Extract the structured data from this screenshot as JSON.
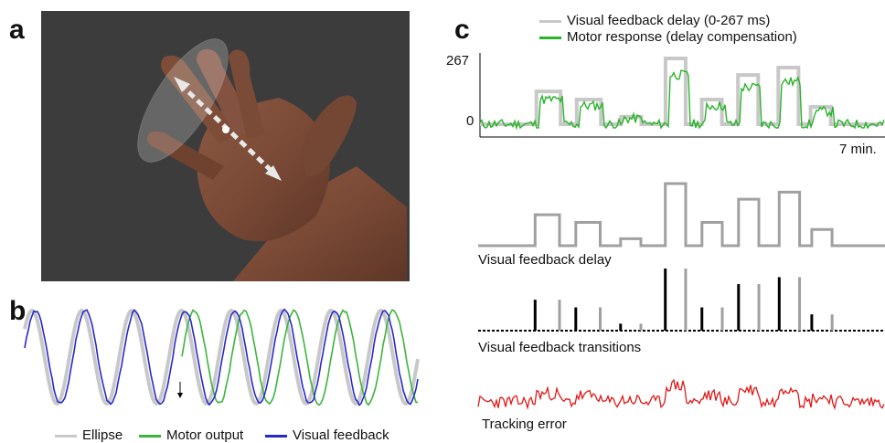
{
  "panels": {
    "a": "a",
    "b": "b",
    "c": "c"
  },
  "panel_b": {
    "legend": [
      "Ellipse",
      "Motor output",
      "Visual feedback"
    ],
    "colors": {
      "ellipse": "#c8c8c8",
      "motor": "#3cb43c",
      "visual": "#2828c8"
    },
    "arrow_marker": "down-arrow"
  },
  "panel_c": {
    "legend": [
      "Visual feedback delay (0-267 ms)",
      "Motor response (delay compensation)"
    ],
    "colors": {
      "delay": "#c8c8c8",
      "motor": "#28b428",
      "delay_trace": "#a0a0a0",
      "transition_black": "#000000",
      "transition_gray": "#a0a0a0",
      "error": "#e01818"
    },
    "y_tick_top": "267",
    "y_tick_bottom": "0",
    "x_label": "7 min.",
    "trace_labels": {
      "delay": "Visual feedback delay",
      "transitions": "Visual feedback transitions",
      "error": "Tracking error"
    }
  },
  "chart_data": [
    {
      "type": "line",
      "title": "",
      "series": [
        {
          "name": "Ellipse",
          "values": [
            1,
            0,
            1,
            0,
            1,
            0,
            1,
            0,
            1,
            0,
            1,
            0,
            1,
            0,
            1,
            0
          ]
        },
        {
          "name": "Motor output",
          "values": [
            0,
            1,
            0,
            1,
            0,
            1,
            0,
            1,
            0,
            1,
            0
          ]
        },
        {
          "name": "Visual feedback",
          "values": [
            1,
            0,
            1,
            0,
            1,
            0,
            1,
            0,
            1,
            0,
            1,
            0,
            1,
            0,
            1,
            0
          ]
        }
      ]
    },
    {
      "type": "line",
      "xlabel": "7 min.",
      "ylim": [
        0,
        267
      ],
      "series": [
        {
          "name": "Visual feedback delay (0-267 ms)",
          "steps": [
            [
              0,
              0
            ],
            [
              0.14,
              0
            ],
            [
              0.14,
              133
            ],
            [
              0.2,
              133
            ],
            [
              0.2,
              0
            ],
            [
              0.24,
              0
            ],
            [
              0.24,
              100
            ],
            [
              0.3,
              100
            ],
            [
              0.3,
              0
            ],
            [
              0.35,
              0
            ],
            [
              0.35,
              30
            ],
            [
              0.4,
              30
            ],
            [
              0.4,
              0
            ],
            [
              0.46,
              0
            ],
            [
              0.46,
              267
            ],
            [
              0.51,
              267
            ],
            [
              0.51,
              0
            ],
            [
              0.55,
              0
            ],
            [
              0.55,
              100
            ],
            [
              0.6,
              100
            ],
            [
              0.6,
              0
            ],
            [
              0.64,
              0
            ],
            [
              0.64,
              200
            ],
            [
              0.69,
              200
            ],
            [
              0.69,
              0
            ],
            [
              0.74,
              0
            ],
            [
              0.74,
              230
            ],
            [
              0.79,
              230
            ],
            [
              0.79,
              0
            ],
            [
              0.82,
              0
            ],
            [
              0.82,
              70
            ],
            [
              0.87,
              70
            ],
            [
              0.87,
              0
            ],
            [
              1,
              0
            ]
          ]
        },
        {
          "name": "Motor response (delay compensation)",
          "values": []
        }
      ]
    }
  ]
}
